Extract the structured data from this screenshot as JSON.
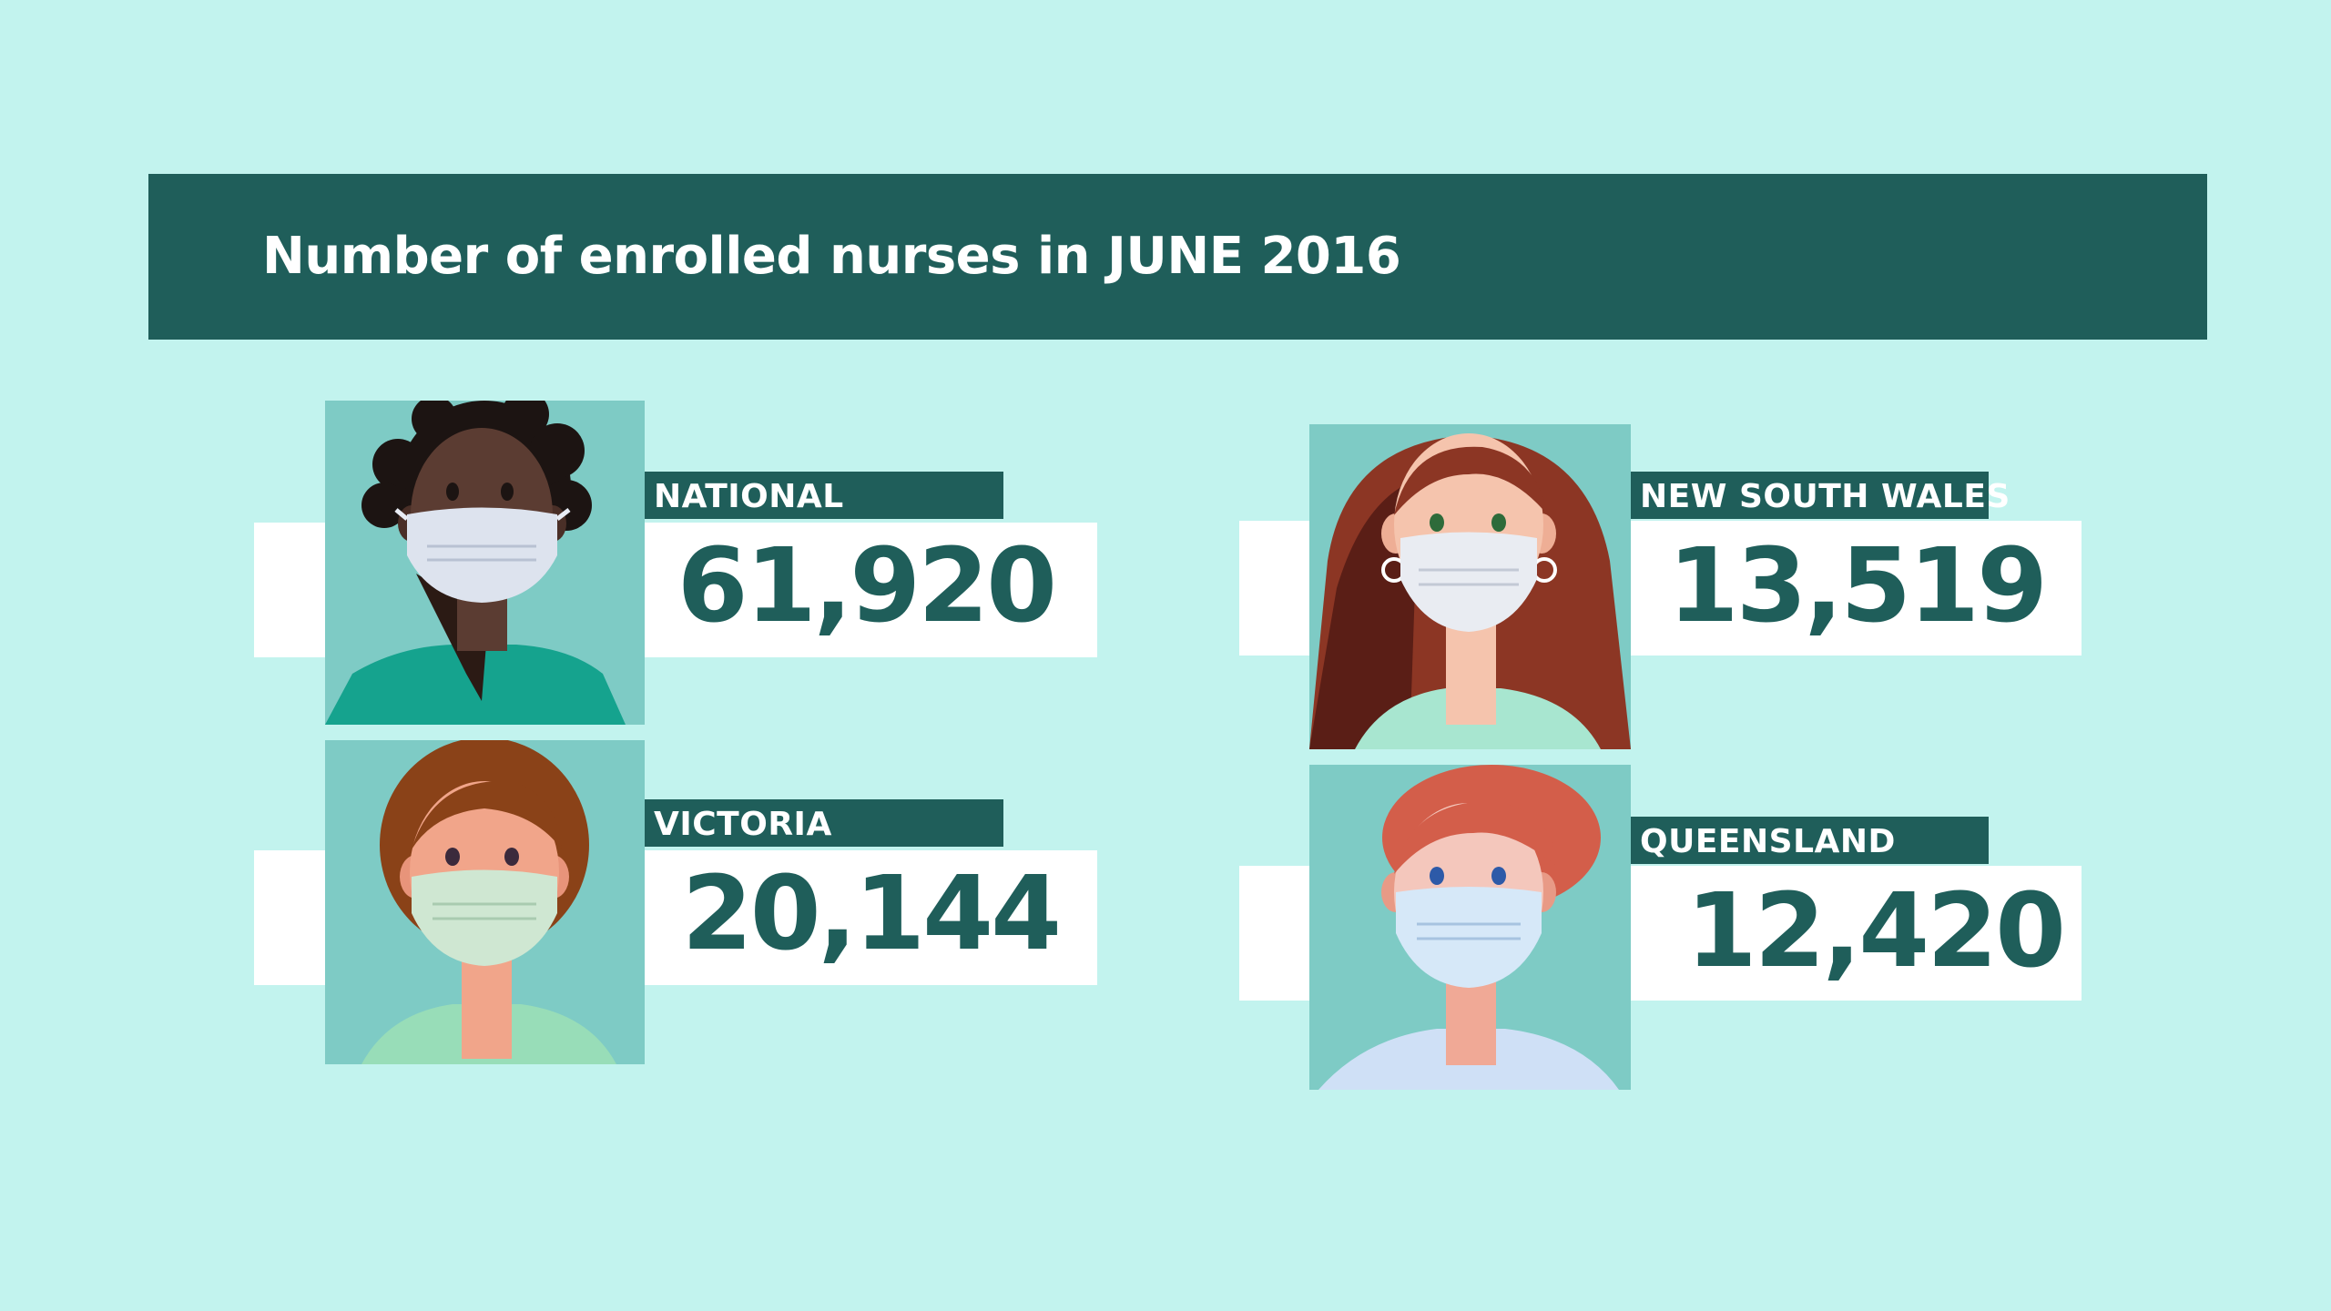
{
  "title": "Number of enrolled nurses in JUNE 2016",
  "colors": {
    "background": "#c2f3ee",
    "banner": "#1f5e5a",
    "portrait_bg": "#7ecbc5",
    "value_text": "#1f5e5a"
  },
  "regions": [
    {
      "label": "NATIONAL",
      "value": "61,920",
      "icon": "nurse-portrait-icon"
    },
    {
      "label": "VICTORIA",
      "value": "20,144",
      "icon": "nurse-portrait-icon"
    },
    {
      "label": "NEW SOUTH WALES",
      "value": "13,519",
      "icon": "nurse-portrait-icon"
    },
    {
      "label": "QUEENSLAND",
      "value": "12,420",
      "icon": "nurse-portrait-icon"
    }
  ]
}
